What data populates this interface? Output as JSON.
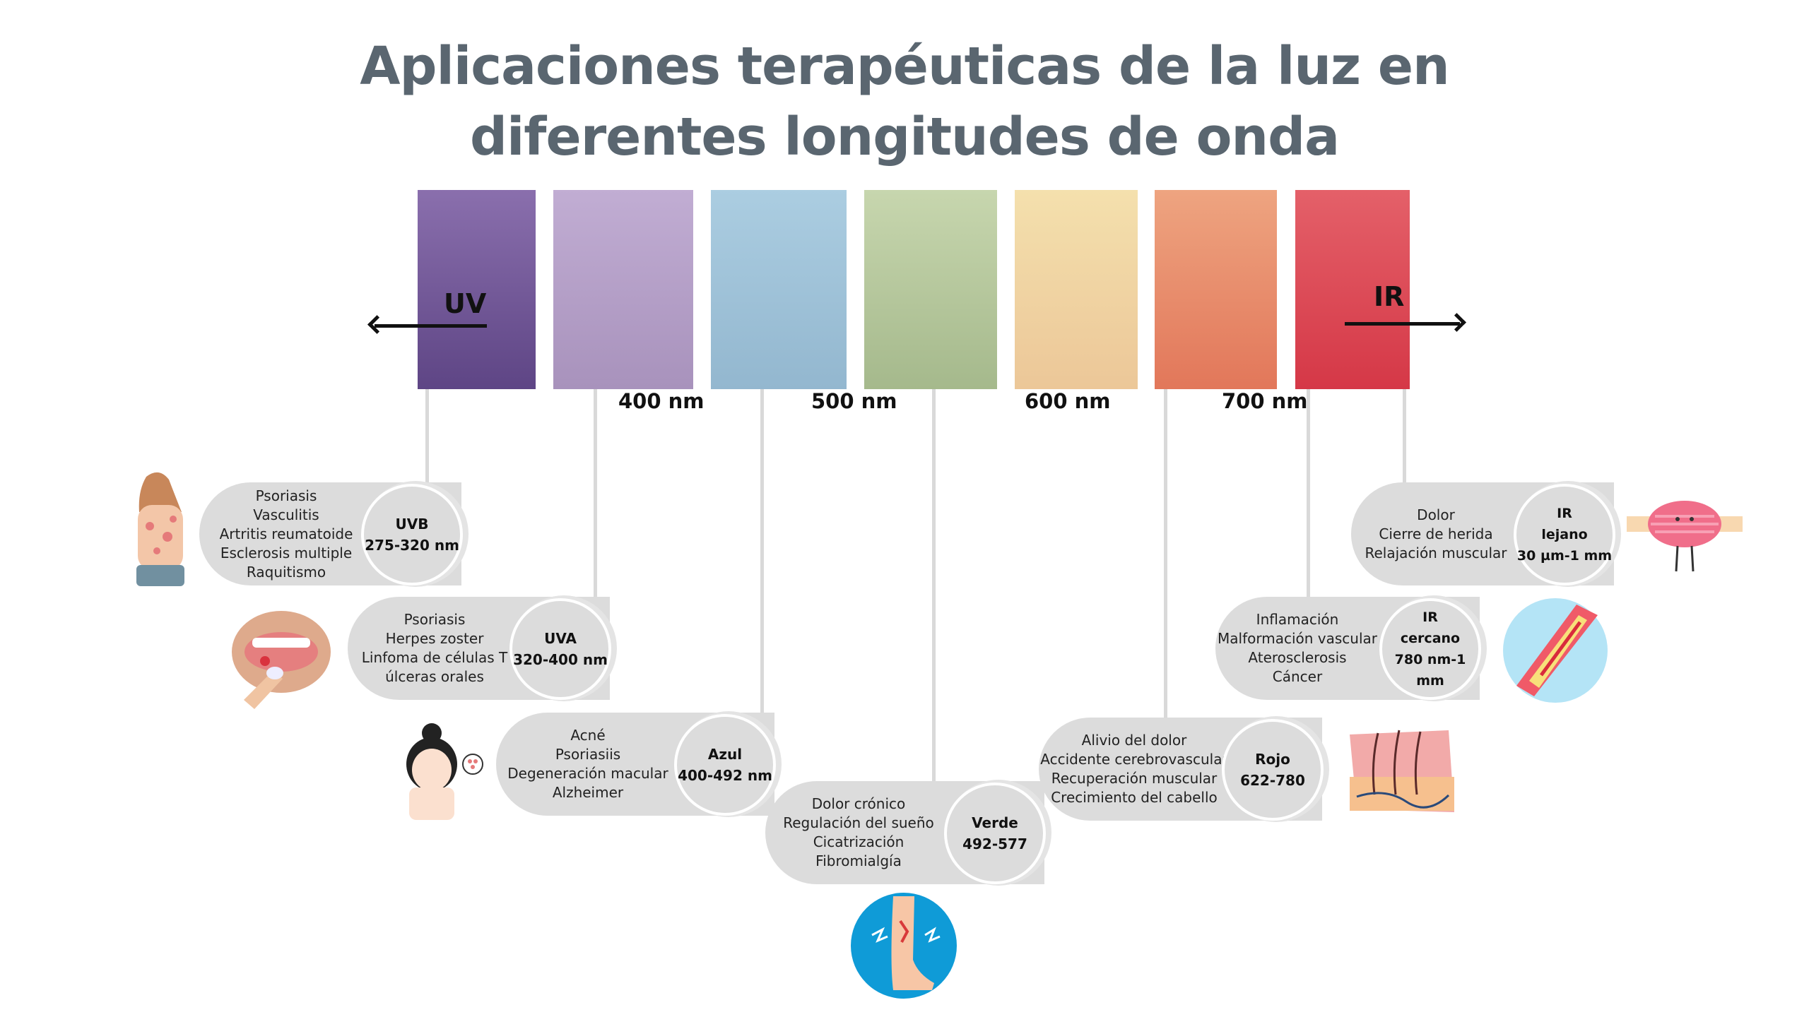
{
  "title": {
    "line1": "Aplicaciones terapéuticas de la luz en",
    "line2": "diferentes longitudes de onda"
  },
  "spectrum": {
    "colors": [
      "#7b5fa0",
      "#b7a2cb",
      "#a1c4da",
      "#bccb a3",
      "#f0d6a5",
      "#e98e6c",
      "#dd4b56"
    ],
    "uv_label": "UV",
    "ir_label": "IR",
    "ticks": [
      "400 nm",
      "500 nm",
      "600 nm",
      "700 nm"
    ]
  },
  "bands": [
    {
      "name": "UVB",
      "range": "275-320 nm",
      "uses": [
        "Psoriasis",
        "Vasculitis",
        "Artritis reumatoide",
        "Esclerosis multiple",
        "Raquitismo"
      ]
    },
    {
      "name": "UVA",
      "range": "320-400 nm",
      "uses": [
        "Psoriasis",
        "Herpes zoster",
        "Linfoma de células T",
        "úlceras orales"
      ]
    },
    {
      "name": "Azul",
      "range": "400-492 nm",
      "uses": [
        "Acné",
        "Psoriasiis",
        "Degeneración macular",
        "Alzheimer"
      ]
    },
    {
      "name": "Verde",
      "range": "492-577",
      "uses": [
        "Dolor crónico",
        "Regulación del sueño",
        "Cicatrización",
        "Fibromialgía"
      ]
    },
    {
      "name": "Rojo",
      "range": "622-780",
      "uses": [
        "Alivio del dolor",
        "Accidente cerebrovascular",
        "Recuperación muscular",
        "Crecimiento del cabello"
      ]
    },
    {
      "name1": "IR",
      "name2": "cercano",
      "range": "780 nm-1 mm",
      "uses": [
        "Inflamación",
        "Malformación vascular",
        "Aterosclerosis",
        "Cáncer"
      ]
    },
    {
      "name1": "IR",
      "name2": "lejano",
      "range": "30 µm-1 mm",
      "uses": [
        "Dolor",
        "Cierre de herida",
        "Relajación muscular"
      ]
    }
  ]
}
